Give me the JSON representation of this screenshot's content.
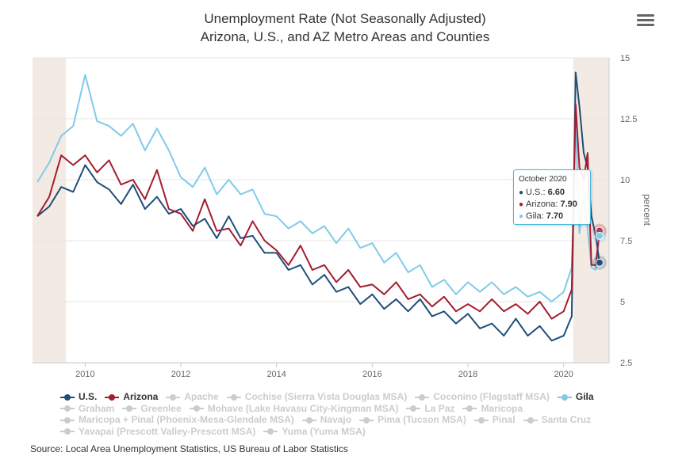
{
  "title_line1": "Unemployment Rate (Not Seasonally Adjusted)",
  "title_line2": "Arizona, U.S., and AZ Metro Areas and Counties",
  "source": "Source: Local Area Unemployment Statistics, US Bureau of Labor Statistics",
  "menu_icon": "hamburger-menu-icon",
  "tooltip": {
    "header": "October 2020",
    "rows": [
      {
        "label": "U.S.:",
        "value": "6.60",
        "color": "#1f4e79"
      },
      {
        "label": "Arizona:",
        "value": "7.90",
        "color": "#a51c30"
      },
      {
        "label": "Gila:",
        "value": "7.70",
        "color": "#7fcbe8"
      }
    ]
  },
  "legend": [
    {
      "label": "U.S.",
      "active": true,
      "color": "#1f4e79"
    },
    {
      "label": "Arizona",
      "active": true,
      "color": "#a51c30"
    },
    {
      "label": "Apache",
      "active": false
    },
    {
      "label": "Cochise (Sierra Vista Douglas MSA)",
      "active": false
    },
    {
      "label": "Coconino (Flagstaff MSA)",
      "active": false
    },
    {
      "label": "Gila",
      "active": true,
      "color": "#7fcbe8"
    },
    {
      "label": "Graham",
      "active": false
    },
    {
      "label": "Greenlee",
      "active": false
    },
    {
      "label": "Mohave (Lake Havasu City-Kingman MSA)",
      "active": false
    },
    {
      "label": "La Paz",
      "active": false
    },
    {
      "label": "Maricopa",
      "active": false
    },
    {
      "label": "Maricopa + Pinal (Phoenix-Mesa-Glendale MSA)",
      "active": false
    },
    {
      "label": "Navajo",
      "active": false
    },
    {
      "label": "Pima (Tucson MSA)",
      "active": false
    },
    {
      "label": "Pinal",
      "active": false
    },
    {
      "label": "Santa Cruz",
      "active": false
    },
    {
      "label": "Yavapai (Prescott Valley-Prescott MSA)",
      "active": false
    },
    {
      "label": "Yuma (Yuma MSA)",
      "active": false
    }
  ],
  "chart_data": {
    "type": "line",
    "title": "Unemployment Rate (Not Seasonally Adjusted)",
    "subtitle": "Arizona, U.S., and AZ Metro Areas and Counties",
    "ylabel": "percent",
    "ylim": [
      2.5,
      15
    ],
    "yticks": [
      2.5,
      5,
      7.5,
      10,
      12.5,
      15
    ],
    "xticks": [
      2010,
      2012,
      2014,
      2016,
      2018,
      2020
    ],
    "xlim": [
      2008.9,
      2020.95
    ],
    "shaded_periods": [
      [
        2008.9,
        2009.6
      ],
      [
        2020.2,
        2020.95
      ]
    ],
    "shade_color": "#f3ebe3",
    "grid": true,
    "legend_position": "bottom",
    "series": [
      {
        "name": "U.S.",
        "color": "#1f4e79",
        "points": [
          [
            2009.0,
            8.5
          ],
          [
            2009.25,
            8.9
          ],
          [
            2009.5,
            9.7
          ],
          [
            2009.75,
            9.5
          ],
          [
            2010.0,
            10.6
          ],
          [
            2010.25,
            9.9
          ],
          [
            2010.5,
            9.6
          ],
          [
            2010.75,
            9.0
          ],
          [
            2011.0,
            9.8
          ],
          [
            2011.25,
            8.8
          ],
          [
            2011.5,
            9.3
          ],
          [
            2011.75,
            8.6
          ],
          [
            2012.0,
            8.8
          ],
          [
            2012.25,
            8.1
          ],
          [
            2012.5,
            8.4
          ],
          [
            2012.75,
            7.6
          ],
          [
            2013.0,
            8.5
          ],
          [
            2013.25,
            7.6
          ],
          [
            2013.5,
            7.7
          ],
          [
            2013.75,
            7.0
          ],
          [
            2014.0,
            7.0
          ],
          [
            2014.25,
            6.3
          ],
          [
            2014.5,
            6.5
          ],
          [
            2014.75,
            5.7
          ],
          [
            2015.0,
            6.1
          ],
          [
            2015.25,
            5.4
          ],
          [
            2015.5,
            5.6
          ],
          [
            2015.75,
            4.9
          ],
          [
            2016.0,
            5.3
          ],
          [
            2016.25,
            4.7
          ],
          [
            2016.5,
            5.1
          ],
          [
            2016.75,
            4.6
          ],
          [
            2017.0,
            5.1
          ],
          [
            2017.25,
            4.4
          ],
          [
            2017.5,
            4.6
          ],
          [
            2017.75,
            4.1
          ],
          [
            2018.0,
            4.5
          ],
          [
            2018.25,
            3.9
          ],
          [
            2018.5,
            4.1
          ],
          [
            2018.75,
            3.6
          ],
          [
            2019.0,
            4.3
          ],
          [
            2019.25,
            3.6
          ],
          [
            2019.5,
            4.0
          ],
          [
            2019.75,
            3.4
          ],
          [
            2020.0,
            3.6
          ],
          [
            2020.17,
            4.4
          ],
          [
            2020.25,
            14.4
          ],
          [
            2020.33,
            13.0
          ],
          [
            2020.42,
            11.1
          ],
          [
            2020.5,
            10.5
          ],
          [
            2020.58,
            8.5
          ],
          [
            2020.67,
            7.7
          ],
          [
            2020.75,
            6.6
          ]
        ]
      },
      {
        "name": "Arizona",
        "color": "#a51c30",
        "points": [
          [
            2009.0,
            8.5
          ],
          [
            2009.25,
            9.3
          ],
          [
            2009.5,
            11.0
          ],
          [
            2009.75,
            10.6
          ],
          [
            2010.0,
            11.0
          ],
          [
            2010.25,
            10.3
          ],
          [
            2010.5,
            10.8
          ],
          [
            2010.75,
            9.8
          ],
          [
            2011.0,
            10.0
          ],
          [
            2011.25,
            9.2
          ],
          [
            2011.5,
            10.4
          ],
          [
            2011.75,
            8.8
          ],
          [
            2012.0,
            8.6
          ],
          [
            2012.25,
            7.9
          ],
          [
            2012.5,
            9.2
          ],
          [
            2012.75,
            7.9
          ],
          [
            2013.0,
            8.0
          ],
          [
            2013.25,
            7.3
          ],
          [
            2013.5,
            8.3
          ],
          [
            2013.75,
            7.5
          ],
          [
            2014.0,
            7.1
          ],
          [
            2014.25,
            6.5
          ],
          [
            2014.5,
            7.3
          ],
          [
            2014.75,
            6.3
          ],
          [
            2015.0,
            6.5
          ],
          [
            2015.25,
            5.8
          ],
          [
            2015.5,
            6.3
          ],
          [
            2015.75,
            5.6
          ],
          [
            2016.0,
            5.7
          ],
          [
            2016.25,
            5.3
          ],
          [
            2016.5,
            5.8
          ],
          [
            2016.75,
            5.1
          ],
          [
            2017.0,
            5.3
          ],
          [
            2017.25,
            4.8
          ],
          [
            2017.5,
            5.2
          ],
          [
            2017.75,
            4.6
          ],
          [
            2018.0,
            4.9
          ],
          [
            2018.25,
            4.6
          ],
          [
            2018.5,
            5.1
          ],
          [
            2018.75,
            4.6
          ],
          [
            2019.0,
            4.9
          ],
          [
            2019.25,
            4.5
          ],
          [
            2019.5,
            5.0
          ],
          [
            2019.75,
            4.3
          ],
          [
            2020.0,
            4.6
          ],
          [
            2020.17,
            5.5
          ],
          [
            2020.25,
            13.1
          ],
          [
            2020.33,
            10.5
          ],
          [
            2020.42,
            10.0
          ],
          [
            2020.5,
            11.1
          ],
          [
            2020.58,
            6.5
          ],
          [
            2020.67,
            6.5
          ],
          [
            2020.75,
            7.9
          ]
        ]
      },
      {
        "name": "Gila",
        "color": "#7fcbe8",
        "points": [
          [
            2009.0,
            9.9
          ],
          [
            2009.25,
            10.7
          ],
          [
            2009.5,
            11.8
          ],
          [
            2009.75,
            12.2
          ],
          [
            2010.0,
            14.3
          ],
          [
            2010.25,
            12.4
          ],
          [
            2010.5,
            12.2
          ],
          [
            2010.75,
            11.8
          ],
          [
            2011.0,
            12.3
          ],
          [
            2011.25,
            11.2
          ],
          [
            2011.5,
            12.1
          ],
          [
            2011.75,
            11.2
          ],
          [
            2012.0,
            10.1
          ],
          [
            2012.25,
            9.7
          ],
          [
            2012.5,
            10.5
          ],
          [
            2012.75,
            9.4
          ],
          [
            2013.0,
            10.0
          ],
          [
            2013.25,
            9.4
          ],
          [
            2013.5,
            9.6
          ],
          [
            2013.75,
            8.6
          ],
          [
            2014.0,
            8.5
          ],
          [
            2014.25,
            8.0
          ],
          [
            2014.5,
            8.3
          ],
          [
            2014.75,
            7.8
          ],
          [
            2015.0,
            8.1
          ],
          [
            2015.25,
            7.4
          ],
          [
            2015.5,
            8.0
          ],
          [
            2015.75,
            7.2
          ],
          [
            2016.0,
            7.4
          ],
          [
            2016.25,
            6.6
          ],
          [
            2016.5,
            7.0
          ],
          [
            2016.75,
            6.2
          ],
          [
            2017.0,
            6.5
          ],
          [
            2017.25,
            5.6
          ],
          [
            2017.5,
            5.9
          ],
          [
            2017.75,
            5.3
          ],
          [
            2018.0,
            5.8
          ],
          [
            2018.25,
            5.4
          ],
          [
            2018.5,
            5.8
          ],
          [
            2018.75,
            5.3
          ],
          [
            2019.0,
            5.6
          ],
          [
            2019.25,
            5.2
          ],
          [
            2019.5,
            5.4
          ],
          [
            2019.75,
            5.0
          ],
          [
            2020.0,
            5.4
          ],
          [
            2020.17,
            6.4
          ],
          [
            2020.25,
            12.5
          ],
          [
            2020.33,
            7.8
          ],
          [
            2020.42,
            9.3
          ],
          [
            2020.5,
            8.0
          ],
          [
            2020.58,
            6.4
          ],
          [
            2020.67,
            6.3
          ],
          [
            2020.75,
            7.7
          ]
        ]
      }
    ]
  }
}
